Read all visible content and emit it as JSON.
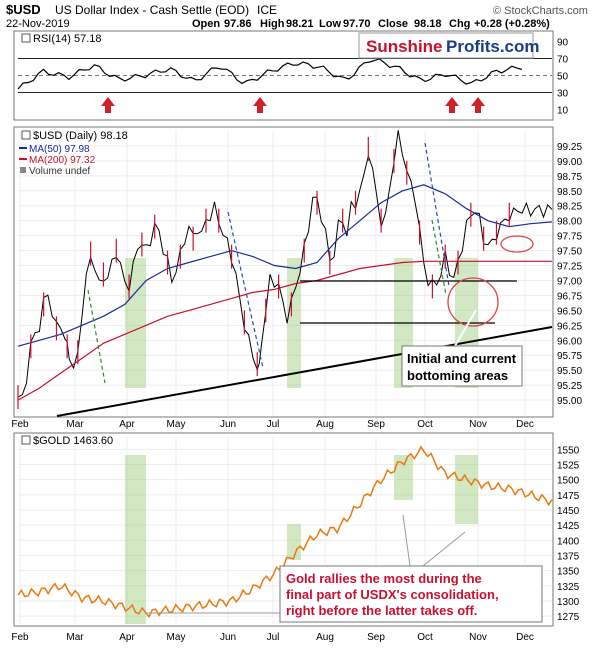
{
  "header": {
    "symbol": "$USD",
    "name": "US Dollar Index - Cash Settle (EOD)",
    "exchange": "ICE",
    "date": "22-Nov-2019",
    "ohlc": {
      "open_label": "Open",
      "open": "97.86",
      "high_label": "High",
      "high": "98.21",
      "low_label": "Low",
      "low": "97.70",
      "close_label": "Close",
      "close": "98.18",
      "chg_label": "Chg",
      "chg": "+0.28 (+0.28%)"
    },
    "source": "© StockCharts.com"
  },
  "brand": {
    "part1": "Sunshine",
    "part2": "Profits.com",
    "color1": "#c8102e",
    "color2": "#1a3a8a"
  },
  "colors": {
    "price_up": "#000000",
    "price_down": "#c8102e",
    "ma50": "#1a2a9a",
    "ma200": "#c8102e",
    "gold": "#e87a10",
    "highlight": "#9acb7a",
    "arrow": "#d0202a",
    "callout_text": "#c8102e"
  },
  "annotations": {
    "bottoming_text": [
      "Initial and current",
      "bottoming areas"
    ],
    "gold_text": [
      "Gold rallies the most during the",
      "final part of USDX's consolidation,",
      "right before the latter takes off."
    ]
  },
  "chart_data": [
    {
      "type": "line",
      "panel": "RSI",
      "title": "RSI(14) 57.18",
      "ylim": [
        0,
        100
      ],
      "y_ticks": [
        10,
        30,
        50,
        70,
        90
      ],
      "reference_lines": [
        30,
        70
      ],
      "x": [
        0,
        5,
        10,
        15,
        20,
        25,
        30,
        35,
        40,
        45,
        50,
        55,
        60,
        65,
        70,
        75,
        80,
        85,
        90,
        95,
        100
      ],
      "values": [
        34,
        55,
        48,
        62,
        45,
        50,
        58,
        43,
        62,
        40,
        55,
        65,
        60,
        44,
        70,
        60,
        44,
        52,
        40,
        55,
        60
      ],
      "arrows_at_months": [
        "Mar",
        "Jun",
        "Oct",
        "Nov"
      ]
    },
    {
      "type": "line",
      "panel": "USD",
      "title": "$USD (Daily) 98.18",
      "legend": [
        "MA(50) 97.98",
        "MA(200) 97.32",
        "Volume undef"
      ],
      "ylim": [
        94.75,
        99.5
      ],
      "y_ticks": [
        95.0,
        95.25,
        95.5,
        95.75,
        96.0,
        96.25,
        96.5,
        96.75,
        97.0,
        97.25,
        97.5,
        97.75,
        98.0,
        98.25,
        98.5,
        98.75,
        99.0,
        99.25
      ],
      "x_ticks": [
        "Feb",
        "Mar",
        "Apr",
        "May",
        "Jun",
        "Jul",
        "Aug",
        "Sep",
        "Oct",
        "Nov",
        "Dec"
      ],
      "series": [
        {
          "name": "$USD",
          "x": [
            0,
            4,
            8,
            12,
            16,
            20,
            24,
            28,
            32,
            36,
            40,
            44,
            46,
            48,
            52,
            56,
            60,
            64,
            68,
            72,
            76,
            80,
            84,
            88,
            92,
            96,
            100,
            104,
            108,
            112,
            116,
            120,
            124,
            128,
            132,
            136,
            140,
            144,
            148,
            152,
            156,
            160,
            164,
            168,
            172,
            176,
            180,
            184,
            188,
            192,
            196,
            200,
            204,
            208,
            212,
            216,
            220,
            224,
            226,
            228,
            232,
            236,
            240,
            244,
            248,
            252,
            256,
            260,
            264,
            268,
            272,
            276,
            280,
            284,
            288,
            292,
            296,
            300,
            304,
            308,
            312,
            316,
            320,
            324,
            328,
            332,
            336,
            340,
            344,
            348,
            352,
            356,
            360,
            364,
            368,
            372,
            376,
            380,
            384,
            388,
            392,
            396,
            400,
            404,
            408,
            412,
            416,
            420,
            424,
            428,
            432,
            436,
            440,
            444,
            448,
            452,
            456,
            460,
            464,
            468,
            472,
            476,
            480,
            484,
            488,
            492,
            496,
            500
          ],
          "values": [
            95.05,
            95.0,
            95.4,
            95.9,
            96.1,
            96.25,
            96.6,
            96.8,
            96.45,
            96.2,
            96.3,
            96.0,
            95.9,
            95.8,
            95.45,
            95.8,
            96.5,
            97.0,
            97.45,
            97.2,
            96.9,
            97.1,
            97.0,
            97.3,
            97.5,
            97.2,
            97.0,
            96.9,
            97.2,
            97.6,
            97.6,
            97.5,
            97.7,
            97.9,
            97.8,
            97.55,
            97.3,
            97.0,
            97.2,
            97.4,
            97.7,
            97.9,
            97.7,
            97.9,
            97.75,
            98.0,
            98.1,
            98.2,
            98.0,
            97.8,
            97.6,
            97.4,
            97.1,
            96.6,
            96.3,
            96.0,
            95.7,
            95.6,
            95.5,
            96.0,
            96.5,
            97.0,
            97.0,
            96.9,
            96.6,
            96.4,
            96.6,
            96.9,
            97.2,
            97.5,
            97.9,
            98.4,
            98.3,
            98.1,
            97.8,
            97.3,
            97.5,
            97.9,
            98.0,
            97.8,
            98.2,
            98.3,
            98.5,
            98.7,
            99.2,
            98.8,
            98.4,
            98.0,
            98.0,
            98.6,
            99.0,
            99.4,
            99.2,
            98.8,
            98.6,
            98.4,
            97.8,
            97.3,
            97.0,
            96.9,
            97.0,
            97.1,
            97.4,
            97.2,
            97.0,
            97.3,
            97.6,
            97.9,
            98.1,
            98.2,
            98.0,
            97.7,
            97.6,
            97.6,
            97.8,
            97.9,
            98.0,
            98.1,
            98.1,
            98.2,
            98.18,
            98.18,
            98.18,
            98.18,
            98.18,
            98.18,
            98.18,
            98.18
          ]
        },
        {
          "name": "MA(50)",
          "x": [
            0,
            20,
            40,
            60,
            80,
            100,
            120,
            140,
            160,
            180,
            200,
            220,
            240,
            260,
            280,
            300,
            320,
            340,
            360,
            380,
            400,
            420,
            440,
            460,
            480,
            500
          ],
          "values": [
            95.9,
            96.0,
            96.1,
            96.25,
            96.4,
            96.6,
            97.0,
            97.2,
            97.3,
            97.4,
            97.5,
            97.4,
            97.25,
            97.2,
            97.3,
            97.7,
            98.0,
            98.3,
            98.5,
            98.6,
            98.45,
            98.2,
            98.0,
            97.9,
            97.95,
            97.98
          ]
        },
        {
          "name": "MA(200)",
          "x": [
            0,
            20,
            40,
            60,
            80,
            100,
            120,
            140,
            160,
            180,
            200,
            220,
            240,
            260,
            280,
            300,
            320,
            340,
            360,
            380,
            400,
            420,
            440,
            460,
            480,
            500
          ],
          "values": [
            95.0,
            95.2,
            95.45,
            95.7,
            95.95,
            96.1,
            96.25,
            96.4,
            96.5,
            96.6,
            96.7,
            96.8,
            96.85,
            96.95,
            97.0,
            97.1,
            97.2,
            97.25,
            97.3,
            97.32,
            97.32,
            97.32,
            97.32,
            97.32,
            97.32,
            97.32
          ]
        }
      ]
    },
    {
      "type": "line",
      "panel": "GOLD",
      "title": "$GOLD 1463.60",
      "ylim": [
        1262,
        1572
      ],
      "y_ticks": [
        1275,
        1300,
        1325,
        1350,
        1375,
        1400,
        1425,
        1450,
        1475,
        1500,
        1525,
        1550
      ],
      "x_ticks": [
        "Feb",
        "Mar",
        "Apr",
        "May",
        "Jun",
        "Jul",
        "Aug",
        "Sep",
        "Oct",
        "Nov",
        "Dec"
      ],
      "series": [
        {
          "name": "$GOLD",
          "x": [
            0,
            20,
            40,
            60,
            80,
            100,
            120,
            140,
            160,
            180,
            200,
            220,
            240,
            260,
            280,
            300,
            320,
            340,
            360,
            380,
            400,
            420,
            440,
            460,
            480,
            500
          ],
          "values": [
            1310,
            1315,
            1325,
            1305,
            1300,
            1290,
            1280,
            1285,
            1290,
            1295,
            1300,
            1320,
            1345,
            1380,
            1410,
            1420,
            1460,
            1500,
            1530,
            1550,
            1510,
            1500,
            1490,
            1485,
            1475,
            1463.6
          ]
        }
      ]
    }
  ]
}
